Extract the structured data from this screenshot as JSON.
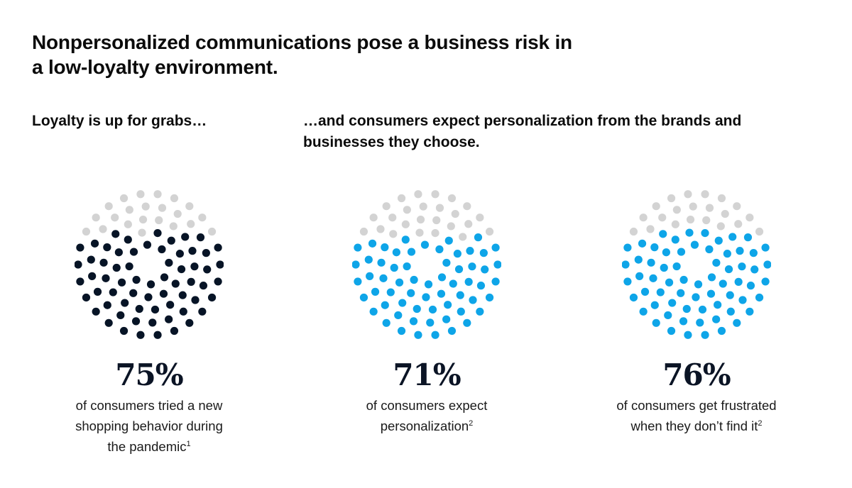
{
  "title": {
    "line1": "Nonpersonalized communications pose a business risk in",
    "line2": "a low-loyalty environment."
  },
  "subheads": {
    "left": "Loyalty is up for grabs…",
    "right_line1": "…and consumers expect personalization from the brands and",
    "right_line2": "businesses they choose."
  },
  "colors": {
    "empty": "#d3d3d3",
    "navy": "#071426",
    "blue": "#0ea5e8"
  },
  "chart_data": [
    {
      "type": "dot-radial",
      "value": 75,
      "value_label": "75%",
      "color": "#071426",
      "desc_lines": [
        "of consumers tried a new",
        "shopping behavior during",
        "the pandemic"
      ],
      "footnote": "1"
    },
    {
      "type": "dot-radial",
      "value": 71,
      "value_label": "71%",
      "color": "#0ea5e8",
      "desc_lines": [
        "of consumers expect",
        "personalization"
      ],
      "footnote": "2"
    },
    {
      "type": "dot-radial",
      "value": 76,
      "value_label": "76%",
      "color": "#0ea5e8",
      "desc_lines": [
        "of consumers get frustrated",
        "when they don’t find it"
      ],
      "footnote": "2"
    }
  ]
}
